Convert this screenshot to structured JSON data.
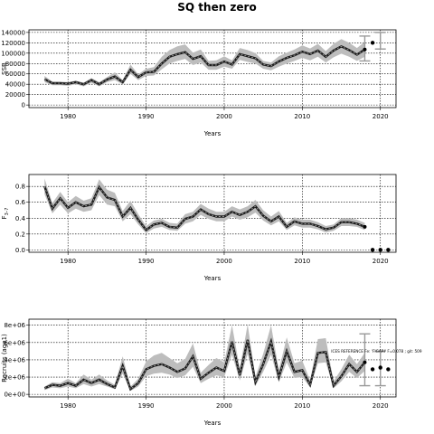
{
  "chart_data": [
    {
      "type": "line",
      "title": "SQ then zero",
      "xlabel": "Years",
      "ylabel": "SSB",
      "xlim": [
        1975,
        2022
      ],
      "ylim": [
        -5000,
        145000
      ],
      "xticks": [
        1980,
        1990,
        2000,
        2010,
        2020
      ],
      "yticks": [
        0,
        20000,
        40000,
        60000,
        80000,
        100000,
        120000,
        140000
      ],
      "ytick_labels": [
        "0",
        "20000",
        "40000",
        "60000",
        "80000",
        "100000",
        "120000",
        "140000"
      ],
      "grid": true,
      "x": [
        1977,
        1978,
        1979,
        1980,
        1981,
        1982,
        1983,
        1984,
        1985,
        1986,
        1987,
        1988,
        1989,
        1990,
        1991,
        1992,
        1993,
        1994,
        1995,
        1996,
        1997,
        1998,
        1999,
        2000,
        2001,
        2002,
        2003,
        2004,
        2005,
        2006,
        2007,
        2008,
        2009,
        2010,
        2011,
        2012,
        2013,
        2014,
        2015,
        2016,
        2017,
        2018
      ],
      "series": [
        {
          "values": [
            50000,
            42000,
            42000,
            41000,
            44000,
            40000,
            48000,
            40000,
            49000,
            55000,
            44000,
            68000,
            54000,
            63000,
            64000,
            80000,
            93000,
            98000,
            102000,
            89000,
            94000,
            77000,
            77000,
            84000,
            78000,
            98000,
            94000,
            90000,
            78000,
            75000,
            84000,
            91000,
            96000,
            103000,
            98000,
            105000,
            93000,
            105000,
            113000,
            106000,
            97000,
            107000
          ]
        },
        {
          "values": [
            56000,
            45000,
            45000,
            44000,
            47000,
            43000,
            52000,
            44000,
            54000,
            63000,
            48000,
            78000,
            59000,
            70000,
            73000,
            93000,
            106000,
            113000,
            117000,
            101000,
            107000,
            85000,
            86000,
            94000,
            86000,
            110000,
            106000,
            100000,
            85000,
            82000,
            94000,
            101000,
            107000,
            115000,
            109000,
            118000,
            104000,
            118000,
            127000,
            120000,
            110000,
            122000
          ]
        },
        {
          "values": [
            44000,
            38000,
            38000,
            37000,
            40000,
            36000,
            43000,
            36000,
            44000,
            48000,
            40000,
            60000,
            48000,
            56000,
            57000,
            69000,
            80000,
            85000,
            89000,
            77000,
            82000,
            68000,
            68000,
            74000,
            70000,
            87000,
            83000,
            80000,
            70000,
            67000,
            74000,
            80000,
            85000,
            91000,
            86000,
            93000,
            82000,
            92000,
            99000,
            93000,
            85000,
            93000
          ]
        }
      ],
      "projection": {
        "x": [
          2019
        ],
        "values": [
          120000
        ],
        "intervals": [
          [
            2018,
            85000,
            133000
          ],
          [
            2020,
            108000,
            140000
          ]
        ]
      }
    },
    {
      "type": "line",
      "xlabel": "Years",
      "ylabel": "F",
      "ylabel_sub": "3–7",
      "xlim": [
        1975,
        2022
      ],
      "ylim": [
        -0.03,
        0.95
      ],
      "xticks": [
        1980,
        1990,
        2000,
        2010,
        2020
      ],
      "yticks": [
        0.0,
        0.2,
        0.4,
        0.6,
        0.8
      ],
      "ytick_labels": [
        "0.0",
        "0.2",
        "0.4",
        "0.6",
        "0.8"
      ],
      "grid": true,
      "x": [
        1977,
        1978,
        1979,
        1980,
        1981,
        1982,
        1983,
        1984,
        1985,
        1986,
        1987,
        1988,
        1989,
        1990,
        1991,
        1992,
        1993,
        1994,
        1995,
        1996,
        1997,
        1998,
        1999,
        2000,
        2001,
        2002,
        2003,
        2004,
        2005,
        2006,
        2007,
        2008,
        2009,
        2010,
        2011,
        2012,
        2013,
        2014,
        2015,
        2016,
        2017,
        2018
      ],
      "series": [
        {
          "values": [
            0.8,
            0.52,
            0.65,
            0.53,
            0.6,
            0.55,
            0.57,
            0.79,
            0.66,
            0.63,
            0.42,
            0.53,
            0.38,
            0.25,
            0.32,
            0.34,
            0.29,
            0.28,
            0.39,
            0.42,
            0.51,
            0.45,
            0.42,
            0.42,
            0.48,
            0.44,
            0.48,
            0.55,
            0.43,
            0.36,
            0.42,
            0.29,
            0.36,
            0.33,
            0.33,
            0.3,
            0.26,
            0.28,
            0.35,
            0.35,
            0.33,
            0.29
          ]
        },
        {
          "values": [
            0.9,
            0.59,
            0.73,
            0.6,
            0.68,
            0.62,
            0.65,
            0.89,
            0.76,
            0.72,
            0.49,
            0.62,
            0.45,
            0.3,
            0.37,
            0.39,
            0.34,
            0.33,
            0.45,
            0.48,
            0.58,
            0.52,
            0.48,
            0.48,
            0.55,
            0.51,
            0.55,
            0.63,
            0.5,
            0.42,
            0.49,
            0.34,
            0.41,
            0.38,
            0.38,
            0.35,
            0.3,
            0.32,
            0.4,
            0.4,
            0.38,
            0.34
          ]
        },
        {
          "values": [
            0.7,
            0.46,
            0.57,
            0.46,
            0.52,
            0.48,
            0.5,
            0.69,
            0.57,
            0.55,
            0.36,
            0.45,
            0.32,
            0.21,
            0.27,
            0.29,
            0.25,
            0.24,
            0.33,
            0.36,
            0.44,
            0.39,
            0.36,
            0.36,
            0.42,
            0.38,
            0.41,
            0.47,
            0.37,
            0.31,
            0.36,
            0.25,
            0.31,
            0.28,
            0.28,
            0.26,
            0.22,
            0.24,
            0.3,
            0.3,
            0.29,
            0.25
          ]
        }
      ],
      "projection": {
        "x": [
          2019,
          2020,
          2021
        ],
        "values": [
          0.0,
          0.0,
          0.0
        ]
      }
    },
    {
      "type": "line",
      "xlabel": "Years",
      "ylabel": "Recruits (age1)",
      "xlim": [
        1975,
        2022
      ],
      "ylim": [
        -300000,
        8700000
      ],
      "xticks": [
        1980,
        1990,
        2000,
        2010,
        2020
      ],
      "yticks": [
        0,
        2000000,
        4000000,
        6000000,
        8000000
      ],
      "ytick_labels": [
        "0e+00",
        "2e+06",
        "4e+06",
        "6e+06",
        "8e+06"
      ],
      "grid": true,
      "x": [
        1977,
        1978,
        1979,
        1980,
        1981,
        1982,
        1983,
        1984,
        1985,
        1986,
        1987,
        1988,
        1989,
        1990,
        1991,
        1992,
        1993,
        1994,
        1995,
        1996,
        1997,
        1998,
        1999,
        2000,
        2001,
        2002,
        2003,
        2004,
        2005,
        2006,
        2007,
        2008,
        2009,
        2010,
        2011,
        2012,
        2013,
        2014,
        2015,
        2016,
        2017,
        2018
      ],
      "series": [
        {
          "values": [
            700000,
            1100000,
            1000000,
            1300000,
            1000000,
            1700000,
            1300000,
            1700000,
            1200000,
            800000,
            3300000,
            600000,
            1300000,
            2900000,
            3300000,
            3500000,
            3100000,
            2600000,
            3000000,
            4400000,
            1800000,
            2500000,
            3100000,
            2700000,
            6100000,
            2200000,
            6300000,
            1400000,
            3500000,
            6100000,
            2000000,
            5000000,
            2600000,
            2800000,
            1100000,
            4800000,
            4900000,
            1000000,
            2100000,
            3500000,
            2600000,
            3700000
          ]
        },
        {
          "values": [
            900000,
            1400000,
            1300000,
            1800000,
            1300000,
            2300000,
            1700000,
            2300000,
            1600000,
            1100000,
            4400000,
            900000,
            1800000,
            3800000,
            4500000,
            4800000,
            4200000,
            3600000,
            4100000,
            5900000,
            2500000,
            3400000,
            4200000,
            3700000,
            8000000,
            3000000,
            8100000,
            2000000,
            4700000,
            8000000,
            2800000,
            6600000,
            3600000,
            3900000,
            1600000,
            6400000,
            6500000,
            1500000,
            2900000,
            4600000,
            3500000,
            4800000
          ]
        },
        {
          "values": [
            500000,
            800000,
            700000,
            900000,
            700000,
            1200000,
            900000,
            1200000,
            900000,
            600000,
            2400000,
            400000,
            900000,
            2100000,
            2400000,
            2500000,
            2300000,
            1900000,
            2200000,
            3200000,
            1300000,
            1800000,
            2200000,
            2000000,
            4600000,
            1600000,
            4700000,
            1000000,
            2600000,
            4600000,
            1400000,
            3700000,
            1900000,
            2000000,
            800000,
            3600000,
            3700000,
            700000,
            1500000,
            2600000,
            1900000,
            2700000
          ]
        }
      ],
      "projection": {
        "x": [
          2019,
          2020,
          2021
        ],
        "values": [
          2900000,
          3100000,
          2900000
        ],
        "intervals": [
          [
            2018,
            1000000,
            7000000
          ],
          [
            2020,
            1000000,
            5000000
          ]
        ]
      },
      "annotation": "ICES REFERENCE Fe: 'FIGARI' F=0.078 ; git: 509"
    }
  ]
}
